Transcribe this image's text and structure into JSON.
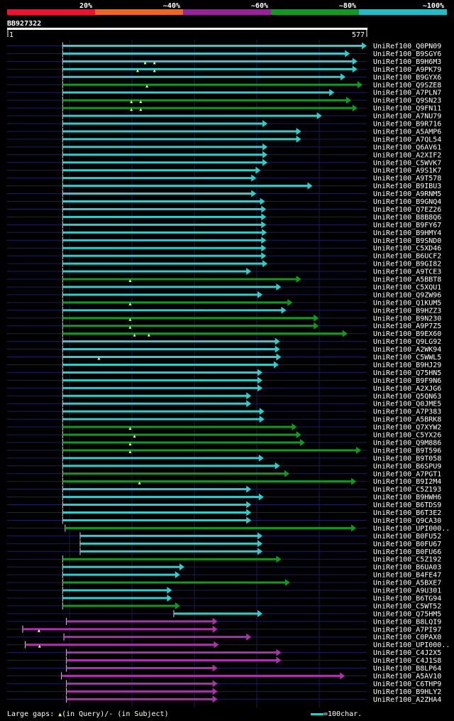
{
  "query": {
    "id": "BB927322",
    "start": "1",
    "end": "577",
    "length": 577
  },
  "identity_bands": [
    {
      "label": "20%",
      "color": "#ee1133"
    },
    {
      "label": "~40%",
      "color": "#ee6622"
    },
    {
      "label": "~60%",
      "color": "#992299"
    },
    {
      "label": "~80%",
      "color": "#119922"
    },
    {
      "label": "~100%",
      "color": "#22bbcc"
    }
  ],
  "colors": {
    "cyan": "#33cccc",
    "green": "#119922",
    "magenta": "#aa33aa",
    "gap": "#ffff66"
  },
  "legend": {
    "gaps_text": "Large gaps: ",
    "query_text": "(in Query)/- (in Subject)",
    "scale_text": "=100char."
  },
  "hits": [
    {
      "name": "UniRef100_Q0PN09",
      "start": 90,
      "end": 577,
      "color": "cyan",
      "gaps": []
    },
    {
      "name": "UniRef100_B9SGY6",
      "start": 90,
      "end": 550,
      "color": "cyan",
      "gaps": []
    },
    {
      "name": "UniRef100_B9H6M3",
      "start": 90,
      "end": 562,
      "color": "cyan",
      "gaps": [
        222,
        237
      ]
    },
    {
      "name": "UniRef100_A9PK79",
      "start": 90,
      "end": 562,
      "color": "cyan",
      "gaps": [
        210,
        237
      ]
    },
    {
      "name": "UniRef100_B9GYX6",
      "start": 90,
      "end": 543,
      "color": "cyan",
      "gaps": []
    },
    {
      "name": "UniRef100_Q9SZE8",
      "start": 90,
      "end": 570,
      "color": "green",
      "gaps": [
        225
      ]
    },
    {
      "name": "UniRef100_A7PLN7",
      "start": 90,
      "end": 525,
      "color": "cyan",
      "gaps": []
    },
    {
      "name": "UniRef100_Q9SN23",
      "start": 90,
      "end": 552,
      "color": "green",
      "gaps": [
        200,
        215
      ]
    },
    {
      "name": "UniRef100_Q9FN11",
      "start": 90,
      "end": 562,
      "color": "green",
      "gaps": [
        200,
        215
      ]
    },
    {
      "name": "UniRef100_A7NU79",
      "start": 90,
      "end": 505,
      "color": "cyan",
      "gaps": []
    },
    {
      "name": "UniRef100_B9R716",
      "start": 90,
      "end": 418,
      "color": "cyan",
      "gaps": []
    },
    {
      "name": "UniRef100_A5AMP6",
      "start": 90,
      "end": 472,
      "color": "cyan",
      "gaps": []
    },
    {
      "name": "UniRef100_A7QL54",
      "start": 90,
      "end": 472,
      "color": "cyan",
      "gaps": []
    },
    {
      "name": "UniRef100_Q6AV61",
      "start": 90,
      "end": 418,
      "color": "cyan",
      "gaps": []
    },
    {
      "name": "UniRef100_A2XIF2",
      "start": 90,
      "end": 418,
      "color": "cyan",
      "gaps": []
    },
    {
      "name": "UniRef100_C5WVK7",
      "start": 90,
      "end": 418,
      "color": "cyan",
      "gaps": []
    },
    {
      "name": "UniRef100_A9S1K7",
      "start": 90,
      "end": 407,
      "color": "cyan",
      "gaps": []
    },
    {
      "name": "UniRef100_A9T578",
      "start": 90,
      "end": 400,
      "color": "cyan",
      "gaps": []
    },
    {
      "name": "UniRef100_B9IBU3",
      "start": 90,
      "end": 490,
      "color": "cyan",
      "gaps": []
    },
    {
      "name": "UniRef100_A9RNM5",
      "start": 90,
      "end": 400,
      "color": "cyan",
      "gaps": []
    },
    {
      "name": "UniRef100_B9GNQ4",
      "start": 90,
      "end": 414,
      "color": "cyan",
      "gaps": []
    },
    {
      "name": "UniRef100_Q7EZ26",
      "start": 90,
      "end": 416,
      "color": "cyan",
      "gaps": []
    },
    {
      "name": "UniRef100_B8B8Q6",
      "start": 90,
      "end": 416,
      "color": "cyan",
      "gaps": []
    },
    {
      "name": "UniRef100_B9FY67",
      "start": 90,
      "end": 416,
      "color": "cyan",
      "gaps": []
    },
    {
      "name": "UniRef100_B9HMY4",
      "start": 90,
      "end": 417,
      "color": "cyan",
      "gaps": []
    },
    {
      "name": "UniRef100_B9SND0",
      "start": 90,
      "end": 416,
      "color": "cyan",
      "gaps": []
    },
    {
      "name": "UniRef100_C5XD46",
      "start": 90,
      "end": 416,
      "color": "cyan",
      "gaps": []
    },
    {
      "name": "UniRef100_B6UCF2",
      "start": 90,
      "end": 416,
      "color": "cyan",
      "gaps": []
    },
    {
      "name": "UniRef100_B9GI82",
      "start": 90,
      "end": 418,
      "color": "cyan",
      "gaps": []
    },
    {
      "name": "UniRef100_A9TCE3",
      "start": 90,
      "end": 392,
      "color": "cyan",
      "gaps": []
    },
    {
      "name": "UniRef100_A5BBT8",
      "start": 90,
      "end": 472,
      "color": "green",
      "gaps": [
        198
      ]
    },
    {
      "name": "UniRef100_C5XQU1",
      "start": 90,
      "end": 440,
      "color": "cyan",
      "gaps": []
    },
    {
      "name": "UniRef100_Q9ZW96",
      "start": 90,
      "end": 410,
      "color": "cyan",
      "gaps": []
    },
    {
      "name": "UniRef100_Q1KUM5",
      "start": 90,
      "end": 458,
      "color": "green",
      "gaps": [
        198
      ]
    },
    {
      "name": "UniRef100_B9HZZ3",
      "start": 90,
      "end": 448,
      "color": "cyan",
      "gaps": []
    },
    {
      "name": "UniRef100_B9N230",
      "start": 90,
      "end": 500,
      "color": "green",
      "gaps": [
        198
      ]
    },
    {
      "name": "UniRef100_A9P7Z5",
      "start": 90,
      "end": 500,
      "color": "green",
      "gaps": [
        198
      ]
    },
    {
      "name": "UniRef100_B9EX60",
      "start": 90,
      "end": 546,
      "color": "green",
      "gaps": [
        205,
        228
      ]
    },
    {
      "name": "UniRef100_Q9LG92",
      "start": 90,
      "end": 438,
      "color": "cyan",
      "gaps": []
    },
    {
      "name": "UniRef100_A2WK94",
      "start": 90,
      "end": 438,
      "color": "cyan",
      "gaps": []
    },
    {
      "name": "UniRef100_C5WWL5",
      "start": 90,
      "end": 440,
      "color": "cyan",
      "gaps": [
        148
      ]
    },
    {
      "name": "UniRef100_B9HJ29",
      "start": 90,
      "end": 436,
      "color": "cyan",
      "gaps": []
    },
    {
      "name": "UniRef100_Q75HN5",
      "start": 90,
      "end": 410,
      "color": "cyan",
      "gaps": []
    },
    {
      "name": "UniRef100_B9F9N6",
      "start": 90,
      "end": 410,
      "color": "cyan",
      "gaps": []
    },
    {
      "name": "UniRef100_A2XJG6",
      "start": 90,
      "end": 410,
      "color": "cyan",
      "gaps": []
    },
    {
      "name": "UniRef100_Q5QN63",
      "start": 90,
      "end": 392,
      "color": "cyan",
      "gaps": []
    },
    {
      "name": "UniRef100_Q0JME5",
      "start": 90,
      "end": 392,
      "color": "cyan",
      "gaps": []
    },
    {
      "name": "UniRef100_A7P383",
      "start": 90,
      "end": 413,
      "color": "cyan",
      "gaps": []
    },
    {
      "name": "UniRef100_A5BRK8",
      "start": 90,
      "end": 413,
      "color": "cyan",
      "gaps": []
    },
    {
      "name": "UniRef100_Q7XYW2",
      "start": 90,
      "end": 465,
      "color": "green",
      "gaps": [
        198
      ]
    },
    {
      "name": "UniRef100_C5YX26",
      "start": 90,
      "end": 472,
      "color": "green",
      "gaps": [
        205
      ]
    },
    {
      "name": "UniRef100_Q9M886",
      "start": 90,
      "end": 478,
      "color": "green",
      "gaps": [
        198
      ]
    },
    {
      "name": "UniRef100_B9T596",
      "start": 90,
      "end": 568,
      "color": "green",
      "gaps": [
        198
      ]
    },
    {
      "name": "UniRef100_B9T058",
      "start": 90,
      "end": 412,
      "color": "cyan",
      "gaps": []
    },
    {
      "name": "UniRef100_B6SPU9",
      "start": 90,
      "end": 438,
      "color": "cyan",
      "gaps": []
    },
    {
      "name": "UniRef100_A7PGT1",
      "start": 90,
      "end": 453,
      "color": "green",
      "gaps": []
    },
    {
      "name": "UniRef100_B9I2M4",
      "start": 90,
      "end": 560,
      "color": "green",
      "gaps": [
        213
      ]
    },
    {
      "name": "UniRef100_C5Z193",
      "start": 90,
      "end": 392,
      "color": "cyan",
      "gaps": []
    },
    {
      "name": "UniRef100_B9HWH6",
      "start": 90,
      "end": 412,
      "color": "cyan",
      "gaps": []
    },
    {
      "name": "UniRef100_B6TDS9",
      "start": 90,
      "end": 392,
      "color": "cyan",
      "gaps": []
    },
    {
      "name": "UniRef100_B6T3E2",
      "start": 90,
      "end": 392,
      "color": "cyan",
      "gaps": []
    },
    {
      "name": "UniRef100_Q9CA30",
      "start": 90,
      "end": 392,
      "color": "cyan",
      "gaps": []
    },
    {
      "name": "UniRef100_UPI000..",
      "start": 94,
      "end": 560,
      "color": "green",
      "gaps": []
    },
    {
      "name": "UniRef100_B0FU52",
      "start": 118,
      "end": 410,
      "color": "cyan",
      "gaps": []
    },
    {
      "name": "UniRef100_B0FU67",
      "start": 118,
      "end": 410,
      "color": "cyan",
      "gaps": []
    },
    {
      "name": "UniRef100_B0FU66",
      "start": 118,
      "end": 410,
      "color": "cyan",
      "gaps": []
    },
    {
      "name": "UniRef100_C5Z192",
      "start": 90,
      "end": 440,
      "color": "green",
      "gaps": []
    },
    {
      "name": "UniRef100_B6UA03",
      "start": 90,
      "end": 285,
      "color": "cyan",
      "gaps": []
    },
    {
      "name": "UniRef100_B4FE47",
      "start": 90,
      "end": 278,
      "color": "cyan",
      "gaps": []
    },
    {
      "name": "UniRef100_A5BXE7",
      "start": 90,
      "end": 454,
      "color": "green",
      "gaps": []
    },
    {
      "name": "UniRef100_A9U301",
      "start": 90,
      "end": 265,
      "color": "cyan",
      "gaps": []
    },
    {
      "name": "UniRef100_B6TG94",
      "start": 90,
      "end": 265,
      "color": "cyan",
      "gaps": []
    },
    {
      "name": "UniRef100_C5WT52",
      "start": 90,
      "end": 278,
      "color": "green",
      "gaps": []
    },
    {
      "name": "UniRef100_Q75HM5",
      "start": 268,
      "end": 410,
      "color": "cyan",
      "gaps": []
    },
    {
      "name": "UniRef100_B8LQI9",
      "start": 96,
      "end": 338,
      "color": "magenta",
      "gaps": []
    },
    {
      "name": "UniRef100_A7PI97",
      "start": 26,
      "end": 338,
      "color": "magenta",
      "gaps": [
        52
      ]
    },
    {
      "name": "UniRef100_C0PAX0",
      "start": 92,
      "end": 392,
      "color": "magenta",
      "gaps": []
    },
    {
      "name": "UniRef100_UPI000..",
      "start": 30,
      "end": 340,
      "color": "magenta",
      "gaps": [
        53
      ]
    },
    {
      "name": "UniRef100_C4J2X5",
      "start": 96,
      "end": 440,
      "color": "magenta",
      "gaps": []
    },
    {
      "name": "UniRef100_C4J1S8",
      "start": 96,
      "end": 440,
      "color": "magenta",
      "gaps": []
    },
    {
      "name": "UniRef100_B8LP64",
      "start": 96,
      "end": 338,
      "color": "magenta",
      "gaps": []
    },
    {
      "name": "UniRef100_A5AV10",
      "start": 88,
      "end": 542,
      "color": "magenta",
      "gaps": []
    },
    {
      "name": "UniRef100_C6THP9",
      "start": 96,
      "end": 338,
      "color": "magenta",
      "gaps": []
    },
    {
      "name": "UniRef100_B9HLY2",
      "start": 96,
      "end": 338,
      "color": "magenta",
      "gaps": []
    },
    {
      "name": "UniRef100_A2ZHA4",
      "start": 96,
      "end": 338,
      "color": "magenta",
      "gaps": []
    }
  ]
}
